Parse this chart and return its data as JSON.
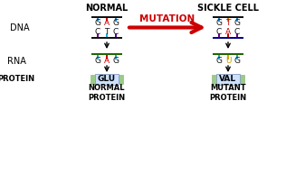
{
  "bg_color": "#ffffff",
  "title_normal": "NORMAL",
  "title_sickle": "SICKLE CELL",
  "mutation_text": "MUTATION",
  "mutation_color": "#cc0000",
  "left_label_dna": "DNA",
  "left_label_rna": "RNA",
  "left_label_protein": "PROTEIN",
  "normal_dna_top": [
    "G",
    "A",
    "G"
  ],
  "normal_dna_bottom": [
    "C",
    "T",
    "C"
  ],
  "sickle_dna_top": [
    "G",
    "T",
    "G"
  ],
  "sickle_dna_bottom": [
    "C",
    "A",
    "C"
  ],
  "normal_dna_colors_top": [
    "#111111",
    "#cc0000",
    "#111111"
  ],
  "normal_dna_colors_bottom": [
    "#111111",
    "#111111",
    "#111111"
  ],
  "sickle_dna_colors_top": [
    "#111111",
    "#cc0000",
    "#111111"
  ],
  "sickle_dna_colors_bottom": [
    "#111111",
    "#cc0000",
    "#111111"
  ],
  "normal_rna": [
    "G",
    "A",
    "G"
  ],
  "sickle_rna": [
    "G",
    "U",
    "G"
  ],
  "normal_rna_colors": [
    "#111111",
    "#cc0000",
    "#111111"
  ],
  "sickle_rna_colors": [
    "#111111",
    "#cc9900",
    "#111111"
  ],
  "normal_protein": "GLU",
  "sickle_protein": "VAL",
  "normal_protein_label": "NORMAL\nPROTEIN",
  "sickle_protein_label": "MUTANT\nPROTEIN",
  "dna_top_bar_colors_normal": [
    "#2288cc",
    "#cc0000",
    "#2288cc"
  ],
  "dna_bot_bar_colors_normal": [
    "#660088",
    "#22aacc",
    "#660088"
  ],
  "dna_top_bar_colors_sickle": [
    "#2288cc",
    "#cc8800",
    "#2288cc"
  ],
  "dna_bot_bar_colors_sickle": [
    "#660088",
    "#cc0000",
    "#660088"
  ],
  "rna_bar_colors_normal": [
    "#22aacc",
    "#cc0000",
    "#22aacc"
  ],
  "rna_bar_colors_sickle": [
    "#22aacc",
    "#ccaa00",
    "#22aacc"
  ],
  "rna_backbone_color": "#226600",
  "dna_strand_color_normal_top": "#111111",
  "dna_strand_color_normal_bot": "#111111",
  "dna_strand_color_sickle_top": "#111111",
  "dna_strand_color_sickle_bot": "#000088"
}
